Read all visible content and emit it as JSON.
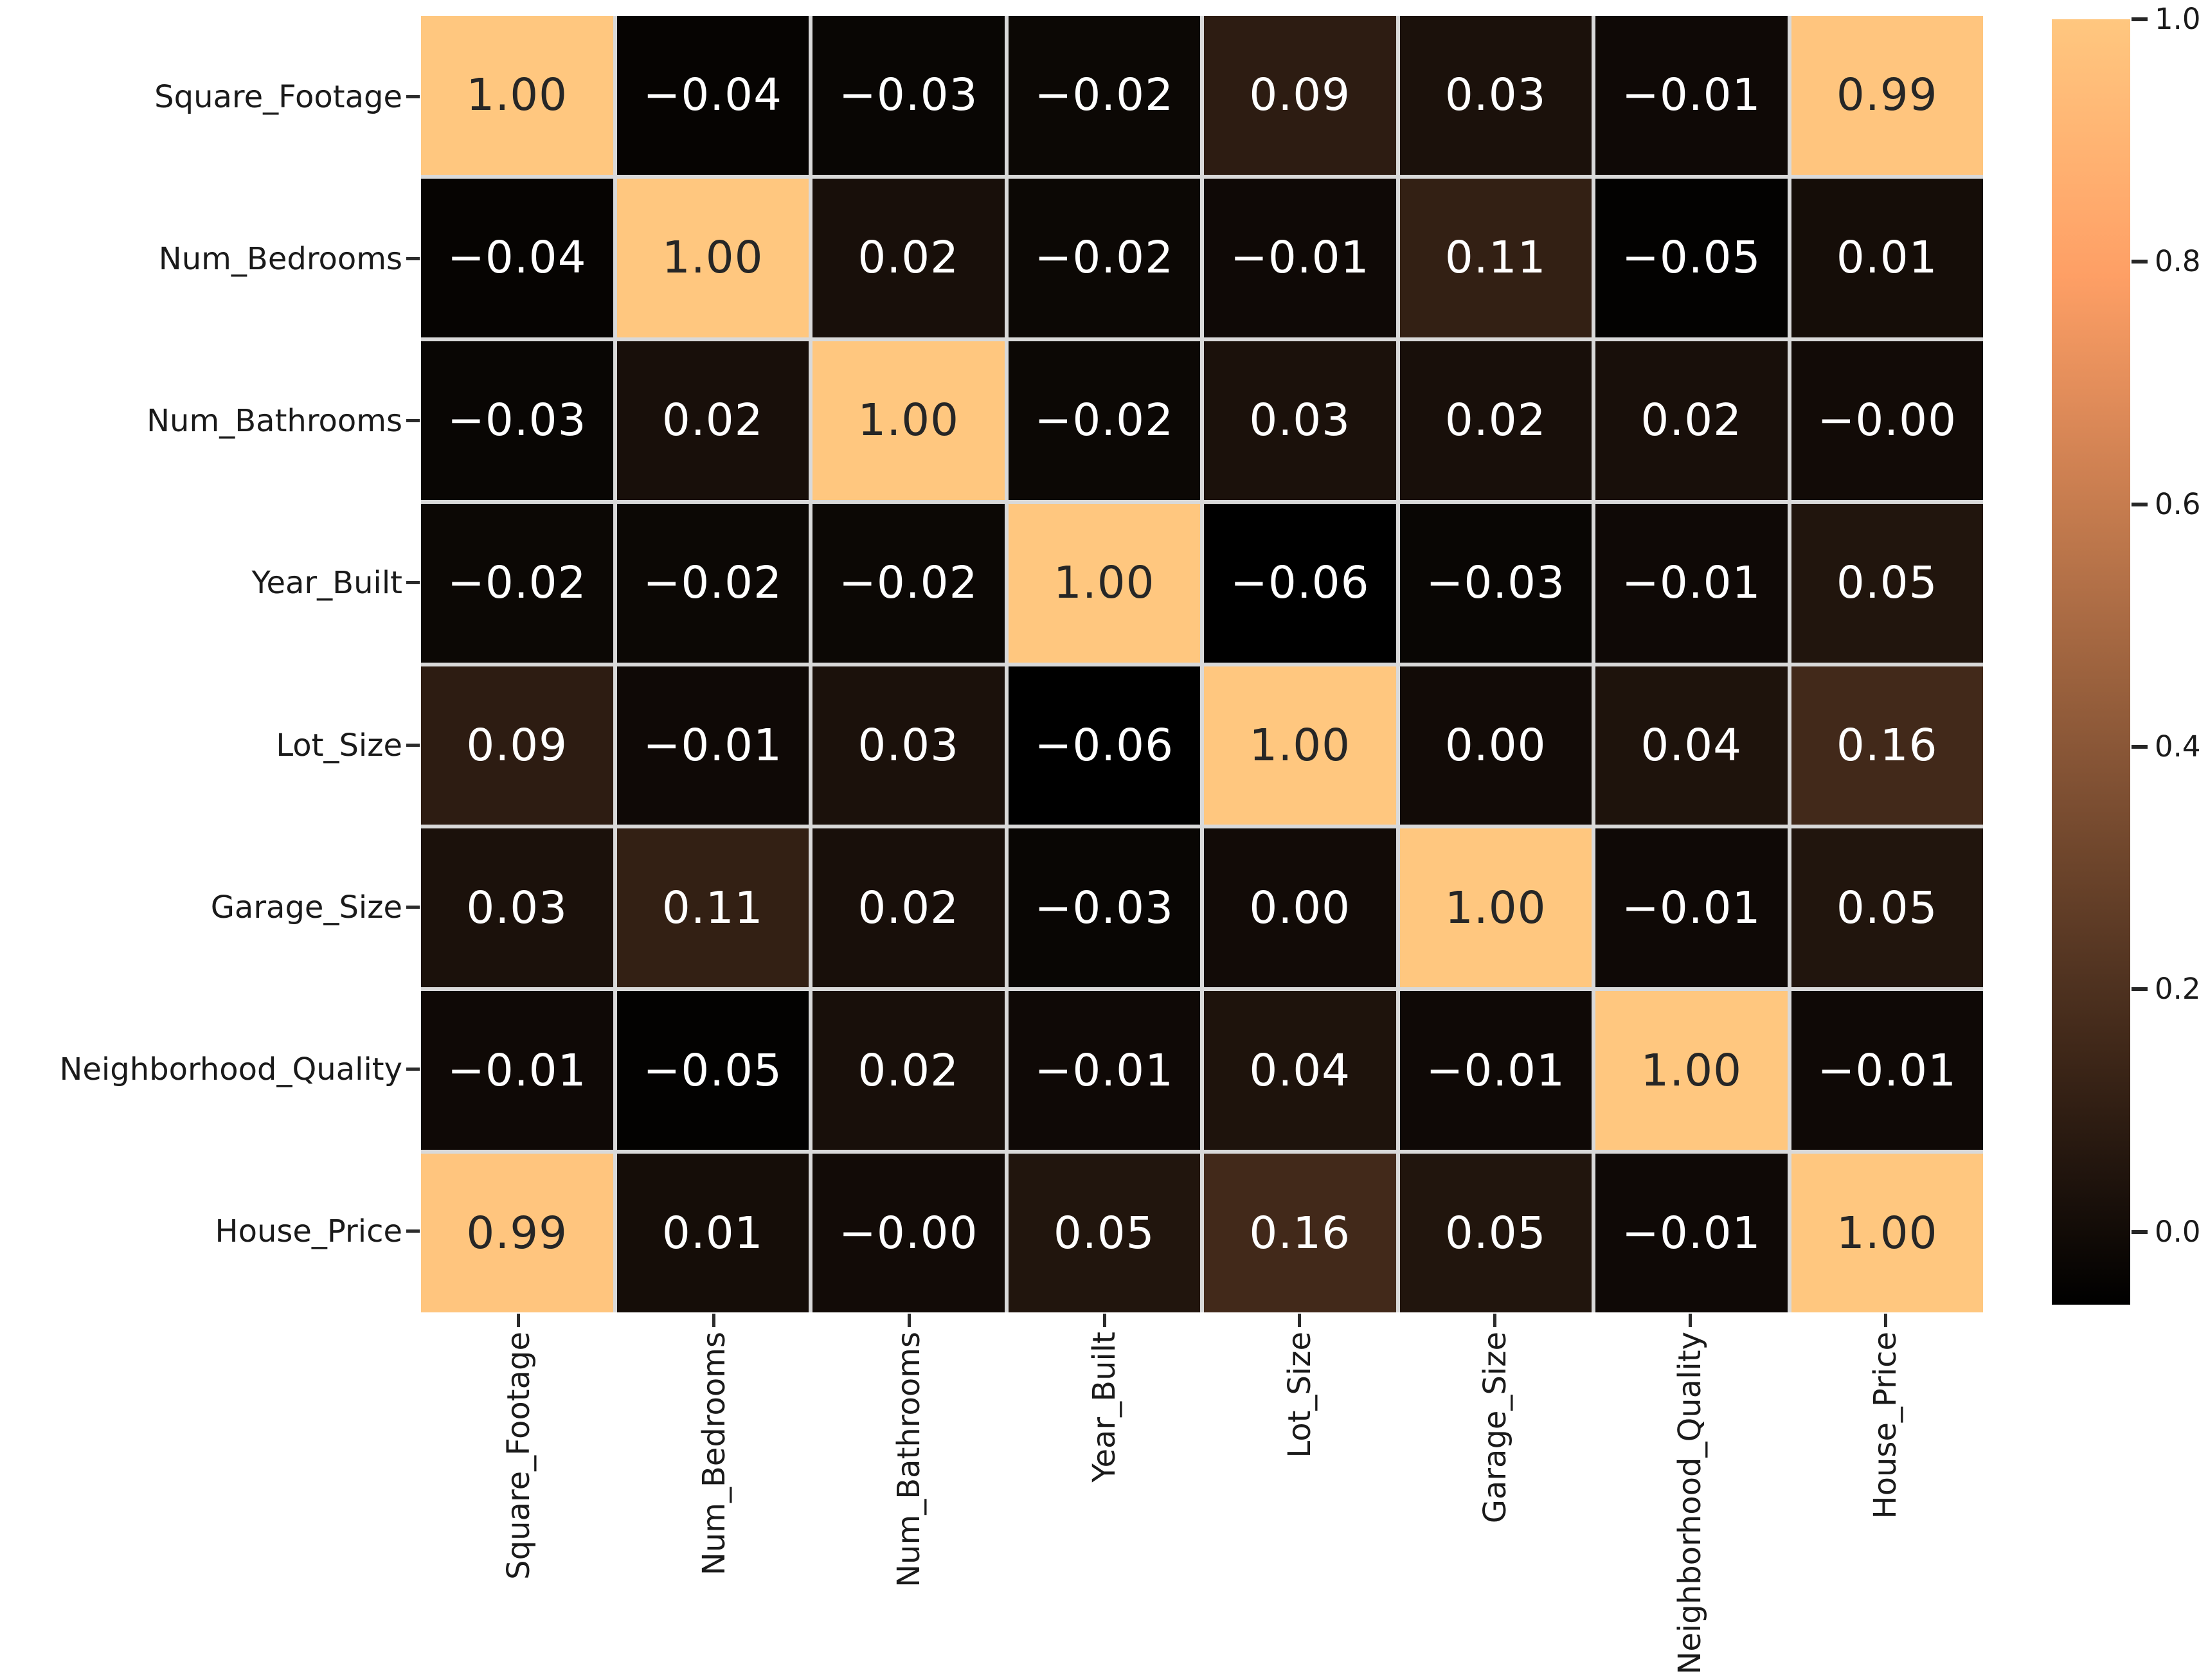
{
  "chart_data": {
    "type": "heatmap",
    "title": "",
    "variables": [
      "Square_Footage",
      "Num_Bedrooms",
      "Num_Bathrooms",
      "Year_Built",
      "Lot_Size",
      "Garage_Size",
      "Neighborhood_Quality",
      "House_Price"
    ],
    "matrix_values": [
      [
        1.0,
        -0.04,
        -0.03,
        -0.02,
        0.09,
        0.03,
        -0.01,
        0.99
      ],
      [
        -0.04,
        1.0,
        0.02,
        -0.02,
        -0.01,
        0.11,
        -0.05,
        0.01
      ],
      [
        -0.03,
        0.02,
        1.0,
        -0.02,
        0.03,
        0.02,
        0.02,
        -0.0
      ],
      [
        -0.02,
        -0.02,
        -0.02,
        1.0,
        -0.06,
        -0.03,
        -0.01,
        0.05
      ],
      [
        0.09,
        -0.01,
        0.03,
        -0.06,
        1.0,
        0.0,
        0.04,
        0.16
      ],
      [
        0.03,
        0.11,
        0.02,
        -0.03,
        0.0,
        1.0,
        -0.01,
        0.05
      ],
      [
        -0.01,
        -0.05,
        0.02,
        -0.01,
        0.04,
        -0.01,
        1.0,
        -0.01
      ],
      [
        0.99,
        0.01,
        -0.0,
        0.05,
        0.16,
        0.05,
        -0.01,
        1.0
      ]
    ],
    "matrix_display": [
      [
        "1.00",
        "−0.04",
        "−0.03",
        "−0.02",
        "0.09",
        "0.03",
        "−0.01",
        "0.99"
      ],
      [
        "−0.04",
        "1.00",
        "0.02",
        "−0.02",
        "−0.01",
        "0.11",
        "−0.05",
        "0.01"
      ],
      [
        "−0.03",
        "0.02",
        "1.00",
        "−0.02",
        "0.03",
        "0.02",
        "0.02",
        "−0.00"
      ],
      [
        "−0.02",
        "−0.02",
        "−0.02",
        "1.00",
        "−0.06",
        "−0.03",
        "−0.01",
        "0.05"
      ],
      [
        "0.09",
        "−0.01",
        "0.03",
        "−0.06",
        "1.00",
        "0.00",
        "0.04",
        "0.16"
      ],
      [
        "0.03",
        "0.11",
        "0.02",
        "−0.03",
        "0.00",
        "1.00",
        "−0.01",
        "0.05"
      ],
      [
        "−0.01",
        "−0.05",
        "0.02",
        "−0.01",
        "0.04",
        "−0.01",
        "1.00",
        "−0.01"
      ],
      [
        "0.99",
        "0.01",
        "−0.00",
        "0.05",
        "0.16",
        "0.05",
        "−0.01",
        "1.00"
      ]
    ],
    "colormap": "copper",
    "vmin": -0.06,
    "vmax": 1.0,
    "grid": true,
    "legend_position": "right",
    "colorbar": {
      "ticks": [
        "1.0",
        "0.8",
        "0.6",
        "0.4",
        "0.2",
        "0.0"
      ],
      "tick_values": [
        1.0,
        0.8,
        0.6,
        0.4,
        0.2,
        0.0
      ]
    },
    "colors": {
      "cmap_top": "#FFC77F",
      "cmap_bottom": "#000000",
      "cell_text_light": "#ffffff",
      "cell_text_dark": "#262626",
      "grid_line": "#d9d9d9",
      "figure_bg": "#ffffff"
    }
  }
}
